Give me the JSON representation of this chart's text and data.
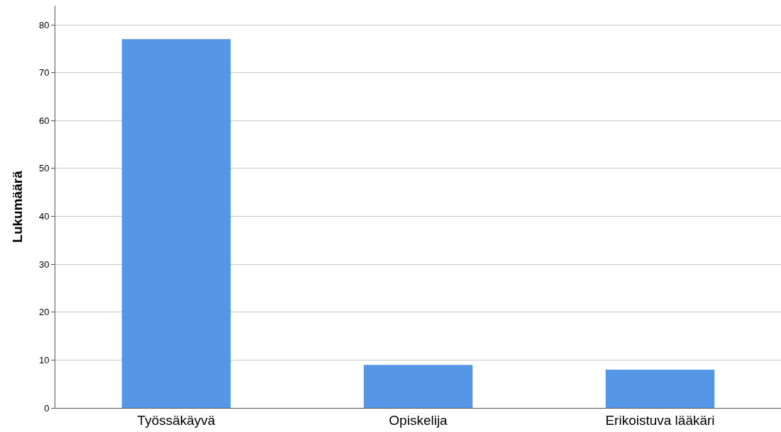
{
  "chart_data": {
    "type": "bar",
    "ylabel": "Lukumäärä",
    "categories": [
      "Työssäkäyvä",
      "Opiskelija",
      "Erikoistuva lääkäri"
    ],
    "series": [
      {
        "color": "#5596e6",
        "values": [
          77,
          9,
          8
        ]
      }
    ],
    "ylim": [
      0,
      84
    ],
    "yticks": [
      0,
      10,
      20,
      30,
      40,
      50,
      60,
      70,
      80
    ],
    "grid": "y"
  }
}
